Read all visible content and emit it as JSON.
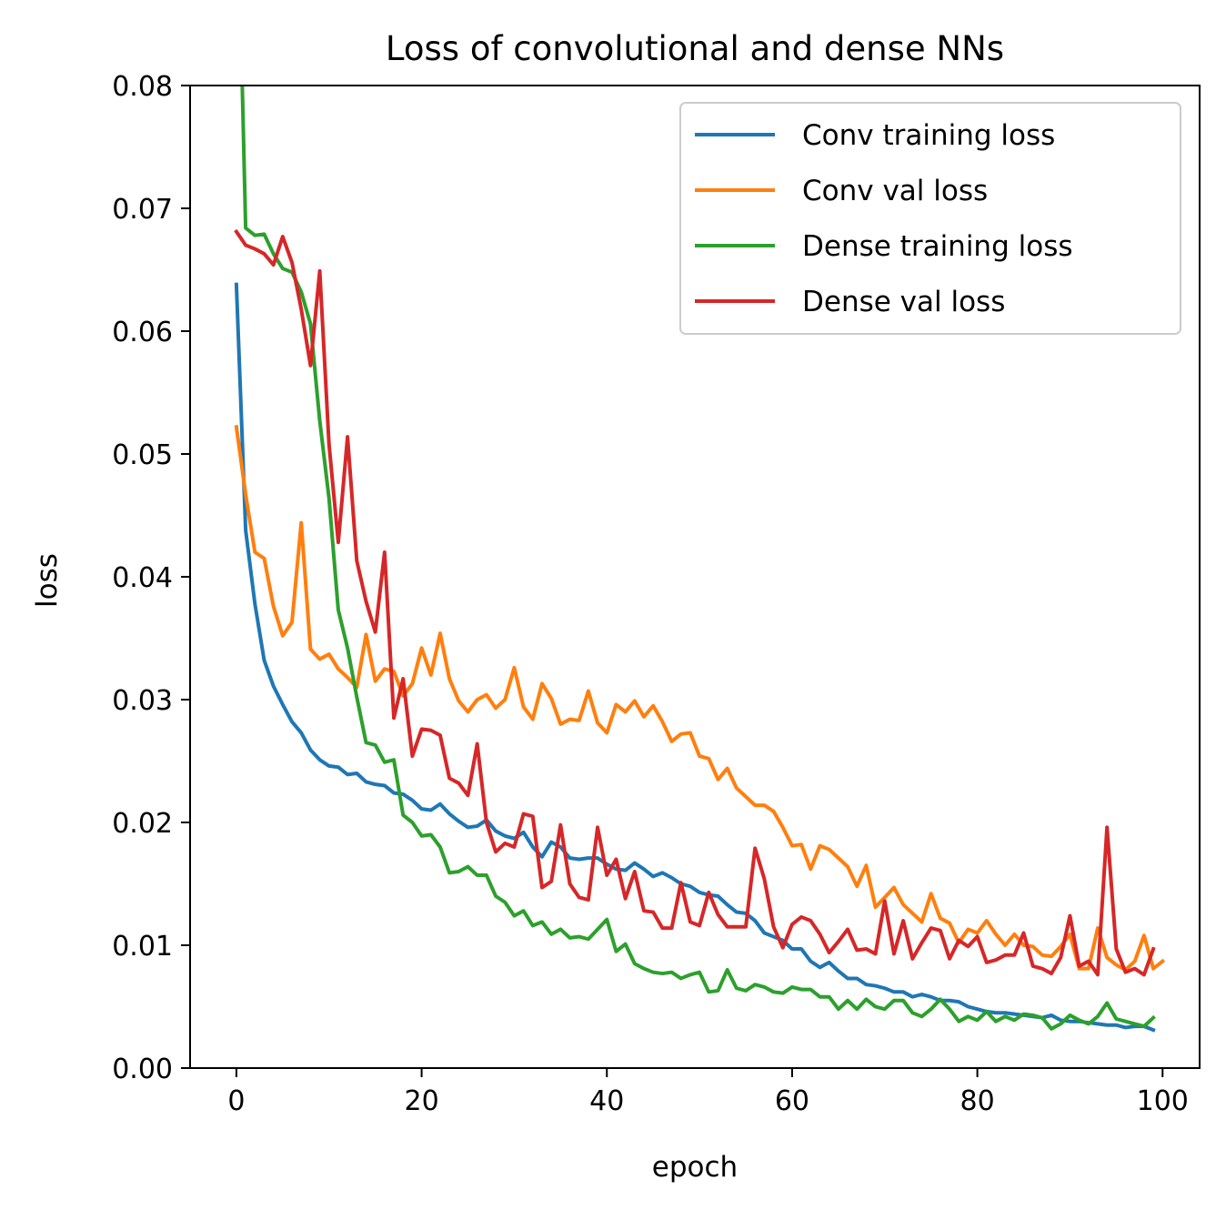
{
  "chart_data": {
    "type": "line",
    "title": "Loss of convolutional and dense NNs",
    "xlabel": "epoch",
    "ylabel": "loss",
    "xlim": [
      -5,
      104
    ],
    "ylim": [
      0.0,
      0.08
    ],
    "x_ticks": [
      "0",
      "20",
      "40",
      "60",
      "80",
      "100"
    ],
    "y_ticks": [
      "0.00",
      "0.01",
      "0.02",
      "0.03",
      "0.04",
      "0.05",
      "0.06",
      "0.07",
      "0.08"
    ],
    "grid": false,
    "legend_position": "top-right",
    "series": [
      {
        "name": "Conv training loss",
        "color": "#1f77b4",
        "values": [
          0.0638,
          0.0438,
          0.0378,
          0.0332,
          0.0311,
          0.0296,
          0.0282,
          0.0273,
          0.0259,
          0.0251,
          0.0246,
          0.0245,
          0.0239,
          0.024,
          0.0233,
          0.0231,
          0.023,
          0.0224,
          0.0223,
          0.0218,
          0.0211,
          0.021,
          0.0215,
          0.0207,
          0.0201,
          0.0196,
          0.0197,
          0.0202,
          0.0193,
          0.0189,
          0.0187,
          0.0192,
          0.018,
          0.0172,
          0.0184,
          0.018,
          0.0171,
          0.017,
          0.0171,
          0.0171,
          0.0166,
          0.0162,
          0.0161,
          0.0167,
          0.0162,
          0.0156,
          0.0159,
          0.0155,
          0.015,
          0.0148,
          0.0143,
          0.0141,
          0.014,
          0.0133,
          0.0127,
          0.0126,
          0.012,
          0.011,
          0.0107,
          0.0104,
          0.0097,
          0.0097,
          0.0087,
          0.0082,
          0.0086,
          0.0079,
          0.0073,
          0.0073,
          0.0068,
          0.0067,
          0.0065,
          0.0062,
          0.0062,
          0.0058,
          0.006,
          0.0058,
          0.0055,
          0.0055,
          0.0054,
          0.005,
          0.0048,
          0.0046,
          0.0045,
          0.0045,
          0.0044,
          0.0043,
          0.0042,
          0.0041,
          0.0043,
          0.0039,
          0.0038,
          0.0038,
          0.0037,
          0.0036,
          0.0035,
          0.0035,
          0.0033,
          0.0034,
          0.0034,
          0.0031
        ]
      },
      {
        "name": "Conv val loss",
        "color": "#ff7f0e",
        "values": [
          0.0522,
          0.0467,
          0.042,
          0.0415,
          0.0376,
          0.0352,
          0.0363,
          0.0444,
          0.0341,
          0.0333,
          0.0337,
          0.0325,
          0.0318,
          0.031,
          0.0353,
          0.0315,
          0.0325,
          0.0323,
          0.0303,
          0.0313,
          0.0342,
          0.032,
          0.0354,
          0.0317,
          0.0299,
          0.029,
          0.03,
          0.0304,
          0.0293,
          0.03,
          0.0326,
          0.0294,
          0.0284,
          0.0313,
          0.0301,
          0.028,
          0.0284,
          0.0283,
          0.0307,
          0.0281,
          0.0273,
          0.0296,
          0.029,
          0.0299,
          0.0286,
          0.0295,
          0.0282,
          0.0266,
          0.0272,
          0.0273,
          0.0254,
          0.0252,
          0.0235,
          0.0244,
          0.0228,
          0.0221,
          0.0214,
          0.0214,
          0.0209,
          0.0196,
          0.0181,
          0.0182,
          0.0162,
          0.0181,
          0.0178,
          0.0171,
          0.0164,
          0.0148,
          0.0165,
          0.0131,
          0.0139,
          0.0147,
          0.0133,
          0.0126,
          0.0119,
          0.0142,
          0.0122,
          0.0118,
          0.0102,
          0.0113,
          0.011,
          0.012,
          0.0109,
          0.01,
          0.0109,
          0.01,
          0.0099,
          0.0092,
          0.0091,
          0.0099,
          0.0109,
          0.0081,
          0.0081,
          0.0114,
          0.009,
          0.0084,
          0.008,
          0.0087,
          0.0108,
          0.0081,
          0.0087
        ]
      },
      {
        "name": "Dense training loss",
        "color": "#2ca02c",
        "values": [
          0.1,
          0.0684,
          0.0678,
          0.0679,
          0.0663,
          0.0651,
          0.0648,
          0.0632,
          0.0606,
          0.0527,
          0.0464,
          0.0373,
          0.0342,
          0.0302,
          0.0265,
          0.0263,
          0.0249,
          0.0251,
          0.0206,
          0.02,
          0.0189,
          0.019,
          0.018,
          0.0159,
          0.016,
          0.0164,
          0.0157,
          0.0157,
          0.014,
          0.0135,
          0.0124,
          0.0128,
          0.0116,
          0.0119,
          0.0109,
          0.0113,
          0.0106,
          0.0107,
          0.0105,
          0.0113,
          0.0121,
          0.0095,
          0.0101,
          0.0085,
          0.0081,
          0.0078,
          0.0077,
          0.0078,
          0.0073,
          0.0076,
          0.0078,
          0.0062,
          0.0063,
          0.008,
          0.0065,
          0.0063,
          0.0068,
          0.0066,
          0.0062,
          0.0061,
          0.0066,
          0.0064,
          0.0064,
          0.0058,
          0.0058,
          0.0048,
          0.0055,
          0.0048,
          0.0056,
          0.005,
          0.0048,
          0.0055,
          0.0055,
          0.0045,
          0.0042,
          0.0048,
          0.0056,
          0.0048,
          0.0038,
          0.0042,
          0.0039,
          0.0046,
          0.0038,
          0.0042,
          0.0039,
          0.0044,
          0.0043,
          0.0041,
          0.0032,
          0.0036,
          0.0043,
          0.0039,
          0.0036,
          0.0042,
          0.0053,
          0.004,
          0.0038,
          0.0036,
          0.0034,
          0.0041
        ]
      },
      {
        "name": "Dense val loss",
        "color": "#d62728",
        "values": [
          0.0681,
          0.067,
          0.0667,
          0.0663,
          0.0654,
          0.0677,
          0.0656,
          0.0618,
          0.0572,
          0.0649,
          0.0508,
          0.0428,
          0.0514,
          0.0413,
          0.038,
          0.0355,
          0.042,
          0.0285,
          0.0317,
          0.0254,
          0.0276,
          0.0275,
          0.0271,
          0.0236,
          0.0232,
          0.0222,
          0.0264,
          0.02,
          0.0176,
          0.0183,
          0.018,
          0.0207,
          0.0205,
          0.0147,
          0.0152,
          0.0198,
          0.015,
          0.0139,
          0.0137,
          0.0196,
          0.0157,
          0.017,
          0.0138,
          0.016,
          0.0128,
          0.0127,
          0.0114,
          0.0114,
          0.0151,
          0.0119,
          0.0116,
          0.0143,
          0.0125,
          0.0115,
          0.0115,
          0.0115,
          0.0179,
          0.0154,
          0.0115,
          0.0098,
          0.0117,
          0.0123,
          0.012,
          0.0109,
          0.0094,
          0.0103,
          0.0113,
          0.0096,
          0.0097,
          0.0093,
          0.0136,
          0.0093,
          0.012,
          0.0089,
          0.0102,
          0.0114,
          0.0112,
          0.0089,
          0.0104,
          0.0099,
          0.0107,
          0.0086,
          0.0088,
          0.0092,
          0.0092,
          0.011,
          0.0083,
          0.0081,
          0.0077,
          0.009,
          0.0124,
          0.0083,
          0.0087,
          0.0076,
          0.0196,
          0.0097,
          0.0078,
          0.0081,
          0.0076,
          0.0097
        ]
      }
    ]
  }
}
